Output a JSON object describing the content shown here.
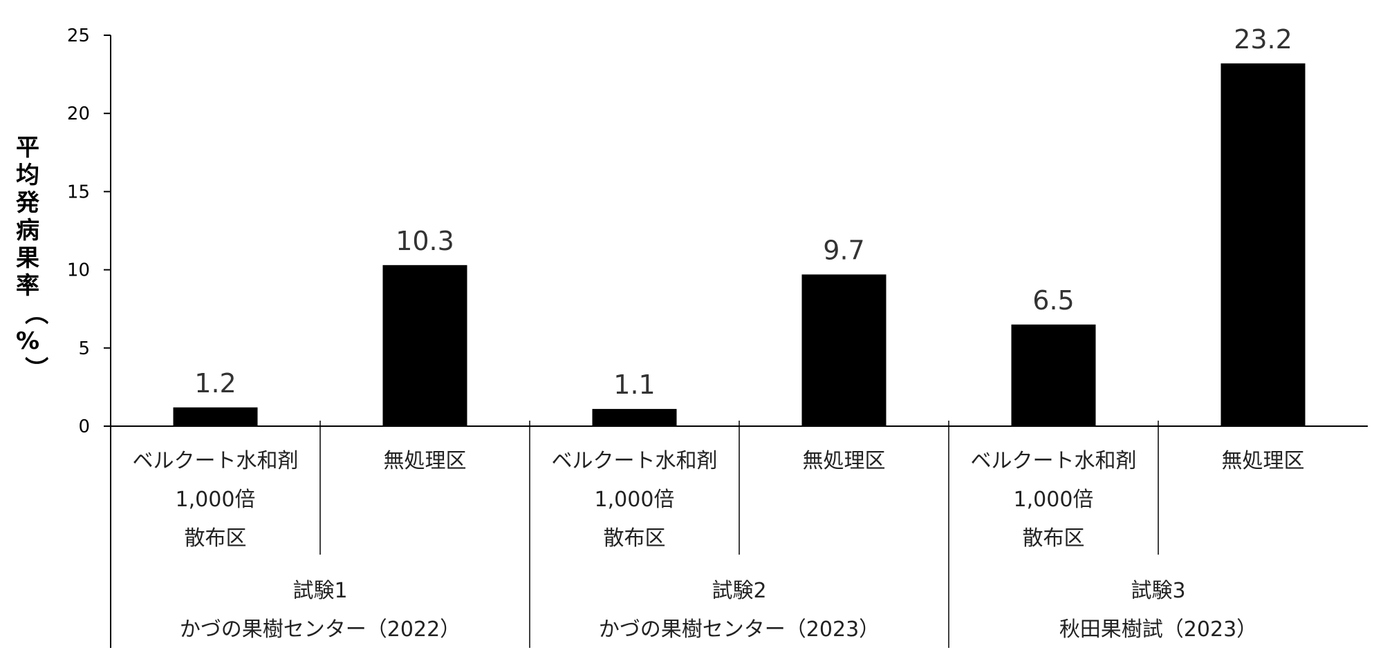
{
  "chart_data": {
    "type": "bar",
    "ylabel": "平均発病果率（%）",
    "ylim": [
      0,
      25
    ],
    "yticks": [
      0,
      5,
      10,
      15,
      20,
      25
    ],
    "grid": false,
    "legend": "none",
    "bar_color": "#000000",
    "groups": [
      {
        "line1": "試験1",
        "line2": "かづの果樹センター（2022）"
      },
      {
        "line1": "試験2",
        "line2": "かづの果樹センター（2023）"
      },
      {
        "line1": "試験3",
        "line2": "秋田果樹試（2023）"
      }
    ],
    "categories": [
      {
        "group": 0,
        "lines": [
          "ベルクート水和剤",
          "1,000倍",
          "散布区"
        ],
        "value": 1.2,
        "label": "1.2"
      },
      {
        "group": 0,
        "lines": [
          "無処理区"
        ],
        "value": 10.3,
        "label": "10.3"
      },
      {
        "group": 1,
        "lines": [
          "ベルクート水和剤",
          "1,000倍",
          "散布区"
        ],
        "value": 1.1,
        "label": "1.1"
      },
      {
        "group": 1,
        "lines": [
          "無処理区"
        ],
        "value": 9.7,
        "label": "9.7"
      },
      {
        "group": 2,
        "lines": [
          "ベルクート水和剤",
          "1,000倍",
          "散布区"
        ],
        "value": 6.5,
        "label": "6.5"
      },
      {
        "group": 2,
        "lines": [
          "無処理区"
        ],
        "value": 23.2,
        "label": "23.2"
      }
    ]
  }
}
